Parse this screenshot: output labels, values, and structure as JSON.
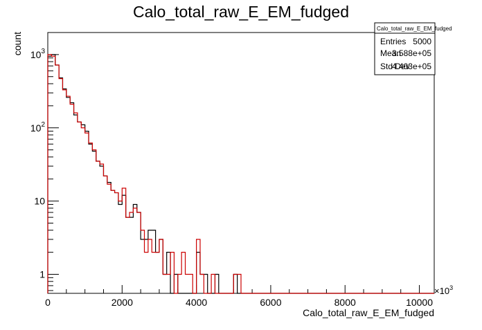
{
  "chart_data": {
    "type": "histogram",
    "title": "Calo_total_raw_E_EM_fudged",
    "xlabel": "Calo_total_raw_E_EM_fudged",
    "ylabel": "count",
    "x_multiplier_label": "×10",
    "x_multiplier_exp": "3",
    "xlim": [
      0,
      10400
    ],
    "ylim": [
      0.55,
      2000
    ],
    "yscale": "log",
    "bin_width": 100,
    "x_ticks": [
      "0",
      "2000",
      "4000",
      "6000",
      "8000",
      "10000"
    ],
    "x_tick_values": [
      0,
      2000,
      4000,
      6000,
      8000,
      10000
    ],
    "y_ticks": [
      {
        "value": 1,
        "base": "1",
        "exp": ""
      },
      {
        "value": 10,
        "base": "10",
        "exp": ""
      },
      {
        "value": 100,
        "base": "10",
        "exp": "2"
      },
      {
        "value": 1000,
        "base": "10",
        "exp": "3"
      }
    ],
    "series": [
      {
        "color": "#000000",
        "values": [
          950,
          1000,
          720,
          480,
          340,
          260,
          220,
          150,
          120,
          110,
          90,
          60,
          48,
          35,
          30,
          22,
          18,
          14,
          13,
          9,
          12,
          6,
          6,
          9,
          7,
          3,
          3,
          4,
          4,
          2,
          3,
          1,
          2,
          0,
          1,
          0,
          0,
          0,
          0,
          0,
          2,
          1,
          1,
          0,
          0,
          1,
          0,
          0,
          0,
          0,
          1,
          0,
          0,
          0
        ]
      },
      {
        "color": "#cc0000",
        "values": [
          1000,
          950,
          720,
          470,
          330,
          270,
          210,
          160,
          120,
          100,
          85,
          62,
          50,
          35,
          32,
          22,
          17,
          14,
          13,
          10,
          15,
          6,
          7,
          8,
          7,
          4,
          2,
          3,
          2,
          2,
          3,
          1,
          1,
          2,
          0,
          1,
          2,
          1,
          1,
          0,
          3,
          1,
          0,
          0,
          1,
          0,
          0,
          0,
          0,
          0,
          1,
          1,
          0,
          0
        ]
      }
    ]
  },
  "stats": {
    "title": "Calo_total_raw_E_EM_fudged",
    "rows": [
      {
        "label": "Entries",
        "value": "5000"
      },
      {
        "label": "Mean",
        "value": "3.588e+05"
      },
      {
        "label": "Std Dev",
        "value": "4.403e+05"
      }
    ]
  }
}
